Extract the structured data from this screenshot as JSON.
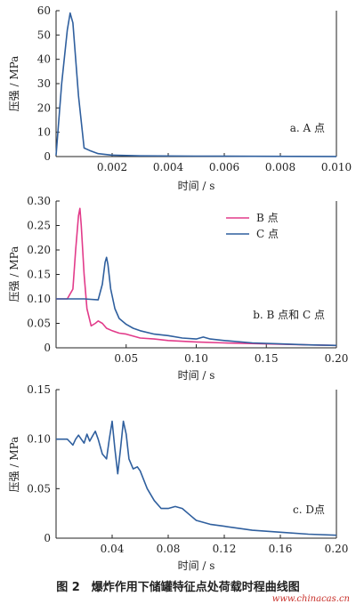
{
  "figure": {
    "caption": "图 2　爆炸作用下储罐特征点处荷载时程曲线图",
    "watermark": "www.chinacas.cn"
  },
  "colors": {
    "blue": "#2f5f9e",
    "pink": "#e23b8a",
    "axis": "#222222"
  },
  "chart_data": [
    {
      "type": "line",
      "annotation": "a. A 点",
      "xlabel": "时间 / s",
      "ylabel": "压强 / MPa",
      "xlim": [
        0,
        0.01
      ],
      "ylim": [
        0,
        60
      ],
      "xticks": [
        0.002,
        0.004,
        0.006,
        0.008,
        0.01
      ],
      "xtick_labels": [
        "0.002",
        "0.004",
        "0.006",
        "0.008",
        "0.010"
      ],
      "yticks": [
        0,
        10,
        20,
        30,
        40,
        50,
        60
      ],
      "ytick_labels": [
        "0",
        "10",
        "20",
        "30",
        "40",
        "50",
        "60"
      ],
      "series": [
        {
          "color": "#2f5f9e",
          "x": [
            0,
            0.0002,
            0.0004,
            0.0005,
            0.0006,
            0.0008,
            0.001,
            0.0012,
            0.0015,
            0.002,
            0.003,
            0.005,
            0.007,
            0.01
          ],
          "y": [
            0.5,
            30,
            52,
            59,
            55,
            25,
            3.5,
            2.5,
            1.2,
            0.6,
            0.3,
            0.2,
            0.1,
            0.05
          ]
        }
      ]
    },
    {
      "type": "line",
      "annotation": "b. B 点和 C 点",
      "xlabel": "时间 / s",
      "ylabel": "压强 / MPa",
      "xlim": [
        0,
        0.2
      ],
      "ylim": [
        0,
        0.3
      ],
      "xticks": [
        0.05,
        0.1,
        0.15,
        0.2
      ],
      "xtick_labels": [
        "0.05",
        "0.10",
        "0.15",
        "0.20"
      ],
      "yticks": [
        0,
        0.05,
        0.1,
        0.15,
        0.2,
        0.25,
        0.3
      ],
      "ytick_labels": [
        "0",
        "0.05",
        "0.10",
        "0.15",
        "0.20",
        "0.25",
        "0.30"
      ],
      "legend": "top-right",
      "series": [
        {
          "name": "B 点",
          "color": "#e23b8a",
          "x": [
            0,
            0.008,
            0.012,
            0.014,
            0.016,
            0.017,
            0.018,
            0.02,
            0.022,
            0.025,
            0.028,
            0.03,
            0.033,
            0.036,
            0.04,
            0.045,
            0.05,
            0.06,
            0.07,
            0.08,
            0.1,
            0.12,
            0.15,
            0.18,
            0.2
          ],
          "y": [
            0.1,
            0.1,
            0.12,
            0.2,
            0.27,
            0.285,
            0.25,
            0.15,
            0.08,
            0.045,
            0.05,
            0.055,
            0.05,
            0.04,
            0.035,
            0.03,
            0.028,
            0.02,
            0.018,
            0.015,
            0.012,
            0.01,
            0.008,
            0.006,
            0.005
          ]
        },
        {
          "name": "C 点",
          "color": "#2f5f9e",
          "x": [
            0,
            0.01,
            0.015,
            0.02,
            0.03,
            0.033,
            0.035,
            0.036,
            0.037,
            0.039,
            0.042,
            0.045,
            0.05,
            0.055,
            0.06,
            0.07,
            0.08,
            0.09,
            0.1,
            0.105,
            0.11,
            0.12,
            0.14,
            0.16,
            0.18,
            0.2
          ],
          "y": [
            0.1,
            0.1,
            0.1,
            0.1,
            0.098,
            0.13,
            0.175,
            0.185,
            0.17,
            0.12,
            0.08,
            0.06,
            0.048,
            0.04,
            0.035,
            0.028,
            0.025,
            0.02,
            0.018,
            0.022,
            0.018,
            0.015,
            0.01,
            0.008,
            0.006,
            0.005
          ]
        }
      ]
    },
    {
      "type": "line",
      "annotation": "c. D点",
      "xlabel": "时间 / s",
      "ylabel": "压强 / MPa",
      "xlim": [
        0,
        0.2
      ],
      "ylim": [
        0,
        0.15
      ],
      "xticks": [
        0.04,
        0.08,
        0.12,
        0.16,
        0.2
      ],
      "xtick_labels": [
        "0.04",
        "0.08",
        "0.12",
        "0.16",
        "0.20"
      ],
      "yticks": [
        0,
        0.05,
        0.1,
        0.15
      ],
      "ytick_labels": [
        "0",
        "0.05",
        "0.10",
        "0.15"
      ],
      "series": [
        {
          "color": "#2f5f9e",
          "x": [
            0,
            0.008,
            0.01,
            0.012,
            0.014,
            0.016,
            0.018,
            0.02,
            0.022,
            0.024,
            0.026,
            0.028,
            0.03,
            0.033,
            0.036,
            0.038,
            0.04,
            0.042,
            0.044,
            0.046,
            0.048,
            0.05,
            0.052,
            0.055,
            0.058,
            0.06,
            0.065,
            0.07,
            0.075,
            0.08,
            0.085,
            0.09,
            0.095,
            0.1,
            0.11,
            0.12,
            0.14,
            0.16,
            0.18,
            0.2
          ],
          "y": [
            0.1,
            0.1,
            0.097,
            0.094,
            0.1,
            0.104,
            0.1,
            0.096,
            0.105,
            0.098,
            0.103,
            0.108,
            0.1,
            0.085,
            0.08,
            0.1,
            0.118,
            0.09,
            0.065,
            0.09,
            0.118,
            0.105,
            0.08,
            0.07,
            0.072,
            0.068,
            0.05,
            0.038,
            0.03,
            0.03,
            0.032,
            0.03,
            0.024,
            0.018,
            0.014,
            0.012,
            0.008,
            0.006,
            0.004,
            0.003
          ]
        }
      ]
    }
  ]
}
